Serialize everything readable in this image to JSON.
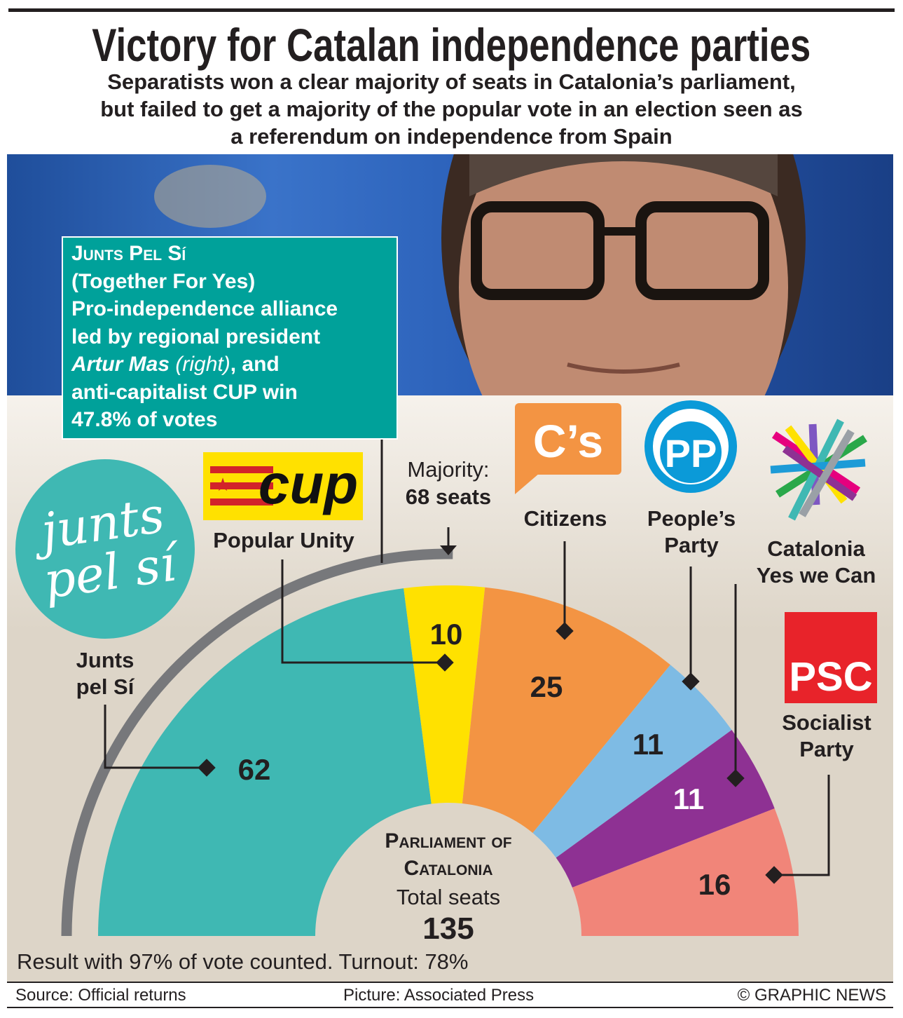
{
  "title": "Victory for Catalan independence parties",
  "subtitle": [
    "Separatists won a clear majority of seats in Catalonia’s parliament,",
    "but failed to get a majority of the popular vote in an election seen as",
    "a referendum on independence from Spain"
  ],
  "infobox": {
    "heading": "Junts Pel Sí",
    "line2": "(Together For Yes)",
    "line3": "Pro-independence alliance",
    "line4": "led by regional president",
    "name": "Artur Mas",
    "right": "(right)",
    "line5b": ", and",
    "line6": "anti-capitalist CUP win",
    "line7": "47.8% of votes"
  },
  "majority": {
    "line1": "Majority:",
    "line2": "68 seats"
  },
  "center": {
    "line1": "Parliament of",
    "line2": "Catalonia",
    "line3": "Total seats",
    "total": "135"
  },
  "logos": {
    "junts": "Junts pel Sí",
    "cup": "cup",
    "cs": "C’s",
    "pp": "PP",
    "psc": "PSC"
  },
  "note": "Result with 97% of vote counted. Turnout: 78%",
  "footer": {
    "source": "Source:  Official returns",
    "picture": "Picture: Associated Press",
    "credit": "© GRAPHIC NEWS"
  },
  "chart_data": {
    "type": "pie",
    "variant": "parliament-semicircle",
    "total": 135,
    "majority": 68,
    "categories": [
      "Junts pel Sí",
      "Popular Unity",
      "Citizens",
      "People’s Party",
      "Catalonia Yes we Can",
      "Socialist Party"
    ],
    "labels": [
      [
        "Junts",
        "pel Sí"
      ],
      [
        "Popular Unity"
      ],
      [
        "Citizens"
      ],
      [
        "People’s",
        "Party"
      ],
      [
        "Catalonia",
        "Yes we Can"
      ],
      [
        "Socialist",
        "Party"
      ]
    ],
    "values": [
      62,
      10,
      25,
      11,
      11,
      16
    ],
    "colors": [
      "#3fb8b3",
      "#ffe100",
      "#f39443",
      "#7ebbe4",
      "#8e3193",
      "#f18579"
    ]
  }
}
